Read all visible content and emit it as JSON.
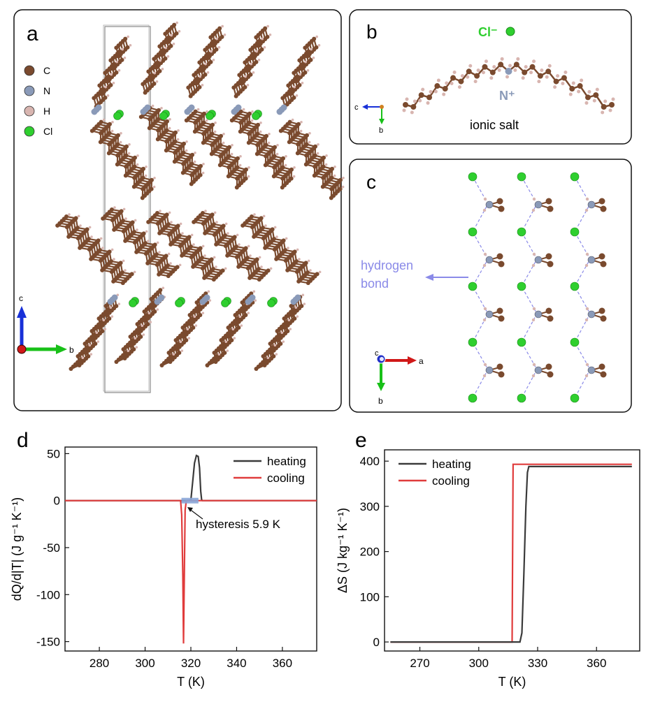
{
  "panels": {
    "a": {
      "label": "a",
      "legend": [
        {
          "symbol": "C",
          "color": "#7a4a2e"
        },
        {
          "symbol": "N",
          "color": "#8a9ab8"
        },
        {
          "symbol": "H",
          "color": "#d8b5b0"
        },
        {
          "symbol": "Cl",
          "color": "#2fcf2f"
        }
      ],
      "axes": {
        "vertical": "c",
        "horizontal": "b"
      }
    },
    "b": {
      "label": "b",
      "anion": "Cl⁻",
      "cation_label": "N⁺",
      "caption": "ionic salt",
      "axes": {
        "horizontal": "c",
        "vertical": "b"
      }
    },
    "c": {
      "label": "c",
      "annotation": [
        "hydrogen",
        "bond"
      ],
      "axes": {
        "horizontal": "a",
        "vertical": "b",
        "out": "c"
      }
    }
  },
  "colors": {
    "carbon": "#7a4a2e",
    "nitrogen": "#8a9ab8",
    "hydrogen": "#d8b5b0",
    "chlorine": "#2fcf2f",
    "heating": "#3a3a3a",
    "cooling": "#e03c3c",
    "hbond": "#8a8ae8",
    "axis_red": "#d01818",
    "axis_green": "#18c018",
    "axis_blue": "#1830d8"
  },
  "chart_data": [
    {
      "panel": "d",
      "type": "line",
      "xlabel": "T (K)",
      "ylabel": "dQ/d|T| (J g⁻¹ K⁻¹)",
      "xlim": [
        265,
        375
      ],
      "ylim": [
        -160,
        57
      ],
      "xticks": [
        280,
        300,
        320,
        340,
        360
      ],
      "yticks": [
        50,
        0,
        -50,
        -100,
        -150
      ],
      "legend_position": "top-right",
      "annotation": "hysteresis 5.9 K",
      "series": [
        {
          "name": "heating",
          "x": [
            265,
            318,
            320,
            320.8,
            321.6,
            322.4,
            323.2,
            323.8,
            324.3,
            324.7,
            325,
            375
          ],
          "y": [
            0,
            0,
            0.5,
            20,
            40,
            48,
            47,
            35,
            10,
            1,
            0,
            0
          ]
        },
        {
          "name": "cooling",
          "x": [
            265,
            315.5,
            316,
            316.5,
            316.8,
            317.2,
            317.5,
            318,
            375
          ],
          "y": [
            0,
            0,
            -15,
            -80,
            -152,
            -70,
            -10,
            0,
            0
          ]
        }
      ]
    },
    {
      "panel": "e",
      "type": "line",
      "xlabel": "T (K)",
      "ylabel": "ΔS (J kg⁻¹ K⁻¹)",
      "xlim": [
        252,
        382
      ],
      "ylim": [
        -20,
        425
      ],
      "xticks": [
        270,
        300,
        330,
        360
      ],
      "yticks": [
        0,
        100,
        200,
        300,
        400
      ],
      "legend_position": "top-left",
      "series": [
        {
          "name": "heating",
          "x": [
            255,
            321,
            322,
            323,
            324,
            324.8,
            325.5,
            378
          ],
          "y": [
            0,
            0,
            20,
            150,
            300,
            375,
            388,
            388
          ]
        },
        {
          "name": "cooling",
          "x": [
            255,
            317,
            317.5,
            378
          ],
          "y": [
            0,
            0,
            393,
            393
          ]
        }
      ]
    }
  ]
}
